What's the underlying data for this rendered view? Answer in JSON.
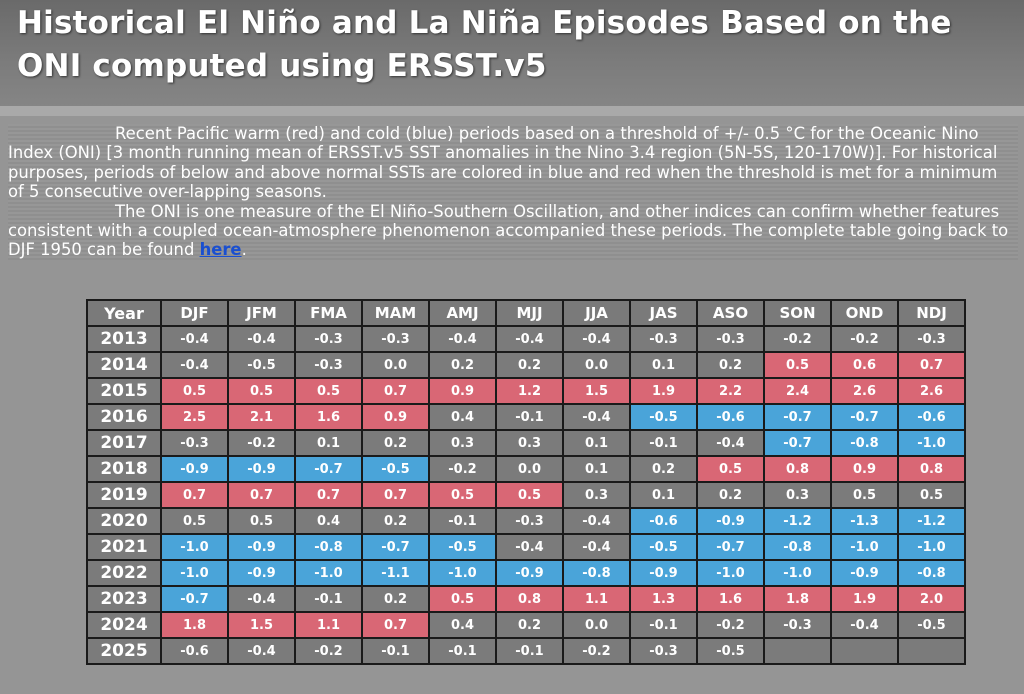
{
  "title_line1": "Historical El Niño and La Niña Episodes Based on the",
  "title_line2": "ONI computed using ERSST.v5",
  "intro": {
    "p1": "Recent Pacific warm (red) and cold (blue) periods based on a threshold of +/- 0.5 °C for the Oceanic Nino Index (ONI) [3 month running mean of ERSST.v5 SST anomalies in the Nino 3.4 region (5N-5S, 120-170W)]. For historical purposes, periods of below and above normal SSTs are colored in blue and red when the threshold is met for a minimum of 5 consecutive over-lapping seasons.",
    "p2_before": "The ONI is one measure of the El Niño-Southern Oscillation, and other indices can confirm whether features consistent with a coupled ocean-atmosphere phenomenon accompanied these periods. The complete table going back to DJF 1950 can be found ",
    "link": "here",
    "p2_after": "."
  },
  "colors": {
    "warm": "#d96775",
    "cold": "#4aa4d9",
    "neutral": "#7b7b7b"
  },
  "table": {
    "headers": [
      "Year",
      "DJF",
      "JFM",
      "FMA",
      "MAM",
      "AMJ",
      "MJJ",
      "JJA",
      "JAS",
      "ASO",
      "SON",
      "OND",
      "NDJ"
    ],
    "rows": [
      {
        "year": "2013",
        "values": [
          "-0.4",
          "-0.4",
          "-0.3",
          "-0.3",
          "-0.4",
          "-0.4",
          "-0.4",
          "-0.3",
          "-0.3",
          "-0.2",
          "-0.2",
          "-0.3"
        ],
        "states": "nnnnnnnnnnnn"
      },
      {
        "year": "2014",
        "values": [
          "-0.4",
          "-0.5",
          "-0.3",
          "0.0",
          "0.2",
          "0.2",
          "0.0",
          "0.1",
          "0.2",
          "0.5",
          "0.6",
          "0.7"
        ],
        "states": "nnnnnnnnnwww"
      },
      {
        "year": "2015",
        "values": [
          "0.5",
          "0.5",
          "0.5",
          "0.7",
          "0.9",
          "1.2",
          "1.5",
          "1.9",
          "2.2",
          "2.4",
          "2.6",
          "2.6"
        ],
        "states": "wwwwwwwwwwww"
      },
      {
        "year": "2016",
        "values": [
          "2.5",
          "2.1",
          "1.6",
          "0.9",
          "0.4",
          "-0.1",
          "-0.4",
          "-0.5",
          "-0.6",
          "-0.7",
          "-0.7",
          "-0.6"
        ],
        "states": "wwwwnnnccccc"
      },
      {
        "year": "2017",
        "values": [
          "-0.3",
          "-0.2",
          "0.1",
          "0.2",
          "0.3",
          "0.3",
          "0.1",
          "-0.1",
          "-0.4",
          "-0.7",
          "-0.8",
          "-1.0"
        ],
        "states": "nnnnnnnnnccc"
      },
      {
        "year": "2018",
        "values": [
          "-0.9",
          "-0.9",
          "-0.7",
          "-0.5",
          "-0.2",
          "0.0",
          "0.1",
          "0.2",
          "0.5",
          "0.8",
          "0.9",
          "0.8"
        ],
        "states": "ccccnnnnwwww"
      },
      {
        "year": "2019",
        "values": [
          "0.7",
          "0.7",
          "0.7",
          "0.7",
          "0.5",
          "0.5",
          "0.3",
          "0.1",
          "0.2",
          "0.3",
          "0.5",
          "0.5"
        ],
        "states": "wwwwwwnnnnnn"
      },
      {
        "year": "2020",
        "values": [
          "0.5",
          "0.5",
          "0.4",
          "0.2",
          "-0.1",
          "-0.3",
          "-0.4",
          "-0.6",
          "-0.9",
          "-1.2",
          "-1.3",
          "-1.2"
        ],
        "states": "nnnnnnnccccc"
      },
      {
        "year": "2021",
        "values": [
          "-1.0",
          "-0.9",
          "-0.8",
          "-0.7",
          "-0.5",
          "-0.4",
          "-0.4",
          "-0.5",
          "-0.7",
          "-0.8",
          "-1.0",
          "-1.0"
        ],
        "states": "cccccnnccccc"
      },
      {
        "year": "2022",
        "values": [
          "-1.0",
          "-0.9",
          "-1.0",
          "-1.1",
          "-1.0",
          "-0.9",
          "-0.8",
          "-0.9",
          "-1.0",
          "-1.0",
          "-0.9",
          "-0.8"
        ],
        "states": "cccccccccccc"
      },
      {
        "year": "2023",
        "values": [
          "-0.7",
          "-0.4",
          "-0.1",
          "0.2",
          "0.5",
          "0.8",
          "1.1",
          "1.3",
          "1.6",
          "1.8",
          "1.9",
          "2.0"
        ],
        "states": "cnnnwwwwwwww"
      },
      {
        "year": "2024",
        "values": [
          "1.8",
          "1.5",
          "1.1",
          "0.7",
          "0.4",
          "0.2",
          "0.0",
          "-0.1",
          "-0.2",
          "-0.3",
          "-0.4",
          "-0.5"
        ],
        "states": "wwwwnnnnnnnn"
      },
      {
        "year": "2025",
        "values": [
          "-0.6",
          "-0.4",
          "-0.2",
          "-0.1",
          "-0.1",
          "-0.1",
          "-0.2",
          "-0.3",
          "-0.5",
          "",
          "",
          ""
        ],
        "states": "nnnnnnnnnnnn"
      }
    ]
  }
}
